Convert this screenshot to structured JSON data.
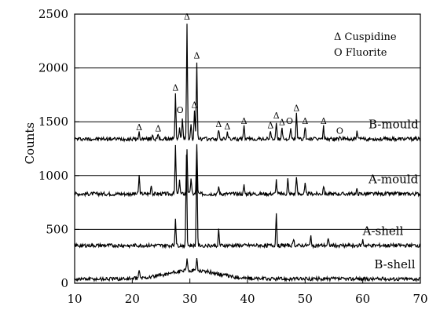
{
  "chart_data": {
    "type": "line",
    "title": "",
    "xlabel": "",
    "ylabel": "Counts",
    "xlim": [
      10,
      70
    ],
    "ylim": [
      0,
      2500
    ],
    "x_ticks": [
      10,
      20,
      30,
      40,
      50,
      60,
      70
    ],
    "y_ticks": [
      0,
      500,
      1000,
      1500,
      2000,
      2500
    ],
    "grid": "horizontal",
    "legend": {
      "position": "top-right",
      "entries": [
        {
          "symbol": "triangle",
          "symbol_char": "Δ",
          "label": "Cuspidine"
        },
        {
          "symbol": "circle",
          "symbol_char": "O",
          "label": "Fluorite"
        }
      ]
    },
    "series": [
      {
        "name": "B-mould",
        "baseline": 1340,
        "label_x": 61,
        "peaks": [
          {
            "x": 21.2,
            "y": 1400
          },
          {
            "x": 23.5,
            "y": 1390
          },
          {
            "x": 24.5,
            "y": 1380
          },
          {
            "x": 27.5,
            "y": 1760
          },
          {
            "x": 28.2,
            "y": 1450
          },
          {
            "x": 28.7,
            "y": 1540
          },
          {
            "x": 29.5,
            "y": 2420
          },
          {
            "x": 30.2,
            "y": 1480
          },
          {
            "x": 30.8,
            "y": 1600
          },
          {
            "x": 31.2,
            "y": 2060
          },
          {
            "x": 35.0,
            "y": 1430
          },
          {
            "x": 36.5,
            "y": 1410
          },
          {
            "x": 39.4,
            "y": 1460
          },
          {
            "x": 44.0,
            "y": 1420
          },
          {
            "x": 45.0,
            "y": 1500
          },
          {
            "x": 46.0,
            "y": 1450
          },
          {
            "x": 47.5,
            "y": 1440
          },
          {
            "x": 48.5,
            "y": 1580
          },
          {
            "x": 50.0,
            "y": 1460
          },
          {
            "x": 53.2,
            "y": 1460
          },
          {
            "x": 56.0,
            "y": 1370
          },
          {
            "x": 59.0,
            "y": 1400
          }
        ]
      },
      {
        "name": "A-mould",
        "baseline": 830,
        "label_x": 61,
        "peaks": [
          {
            "x": 21.2,
            "y": 1000
          },
          {
            "x": 23.3,
            "y": 920
          },
          {
            "x": 27.5,
            "y": 1270
          },
          {
            "x": 28.2,
            "y": 970
          },
          {
            "x": 29.5,
            "y": 1250
          },
          {
            "x": 30.2,
            "y": 980
          },
          {
            "x": 31.2,
            "y": 1300
          },
          {
            "x": 35.0,
            "y": 900
          },
          {
            "x": 39.4,
            "y": 910
          },
          {
            "x": 45.0,
            "y": 960
          },
          {
            "x": 47.0,
            "y": 970
          },
          {
            "x": 48.5,
            "y": 1000
          },
          {
            "x": 50.0,
            "y": 920
          },
          {
            "x": 53.2,
            "y": 910
          },
          {
            "x": 59.0,
            "y": 870
          }
        ]
      },
      {
        "name": "A-shell",
        "baseline": 350,
        "label_x": 60,
        "peaks": [
          {
            "x": 27.5,
            "y": 610
          },
          {
            "x": 29.4,
            "y": 1200
          },
          {
            "x": 31.2,
            "y": 1230
          },
          {
            "x": 35.0,
            "y": 500
          },
          {
            "x": 45.0,
            "y": 660
          },
          {
            "x": 48.0,
            "y": 420
          },
          {
            "x": 51.0,
            "y": 440
          },
          {
            "x": 54.0,
            "y": 410
          },
          {
            "x": 60.0,
            "y": 400
          }
        ]
      },
      {
        "name": "B-shell",
        "baseline": 40,
        "label_x": 62,
        "hump": {
          "center": 30.5,
          "height": 80,
          "width": 6
        },
        "peaks": [
          {
            "x": 21.2,
            "y": 120
          },
          {
            "x": 29.5,
            "y": 150
          },
          {
            "x": 31.2,
            "y": 160
          }
        ]
      }
    ],
    "annotations": [
      {
        "symbol": "triangle",
        "symbol_char": "Δ",
        "x": 21.2,
        "y": 1420
      },
      {
        "symbol": "triangle",
        "symbol_char": "Δ",
        "x": 24.5,
        "y": 1410
      },
      {
        "symbol": "triangle",
        "symbol_char": "Δ",
        "x": 27.5,
        "y": 1790
      },
      {
        "symbol": "circle",
        "symbol_char": "O",
        "x": 28.3,
        "y": 1580
      },
      {
        "symbol": "triangle",
        "symbol_char": "Δ",
        "x": 29.5,
        "y": 2450
      },
      {
        "symbol": "triangle",
        "symbol_char": "Δ",
        "x": 30.8,
        "y": 1630
      },
      {
        "symbol": "triangle",
        "symbol_char": "Δ",
        "x": 31.2,
        "y": 2090
      },
      {
        "symbol": "triangle",
        "symbol_char": "Δ",
        "x": 35.0,
        "y": 1450
      },
      {
        "symbol": "triangle",
        "symbol_char": "Δ",
        "x": 36.5,
        "y": 1430
      },
      {
        "symbol": "triangle",
        "symbol_char": "Δ",
        "x": 39.4,
        "y": 1480
      },
      {
        "symbol": "triangle",
        "symbol_char": "Δ",
        "x": 44.0,
        "y": 1440
      },
      {
        "symbol": "triangle",
        "symbol_char": "Δ",
        "x": 45.0,
        "y": 1530
      },
      {
        "symbol": "triangle",
        "symbol_char": "Δ",
        "x": 46.0,
        "y": 1470
      },
      {
        "symbol": "circle",
        "symbol_char": "O",
        "x": 47.3,
        "y": 1480
      },
      {
        "symbol": "triangle",
        "symbol_char": "Δ",
        "x": 48.5,
        "y": 1600
      },
      {
        "symbol": "triangle",
        "symbol_char": "Δ",
        "x": 50.0,
        "y": 1480
      },
      {
        "symbol": "triangle",
        "symbol_char": "Δ",
        "x": 53.2,
        "y": 1480
      },
      {
        "symbol": "circle",
        "symbol_char": "O",
        "x": 56.0,
        "y": 1390
      }
    ]
  }
}
